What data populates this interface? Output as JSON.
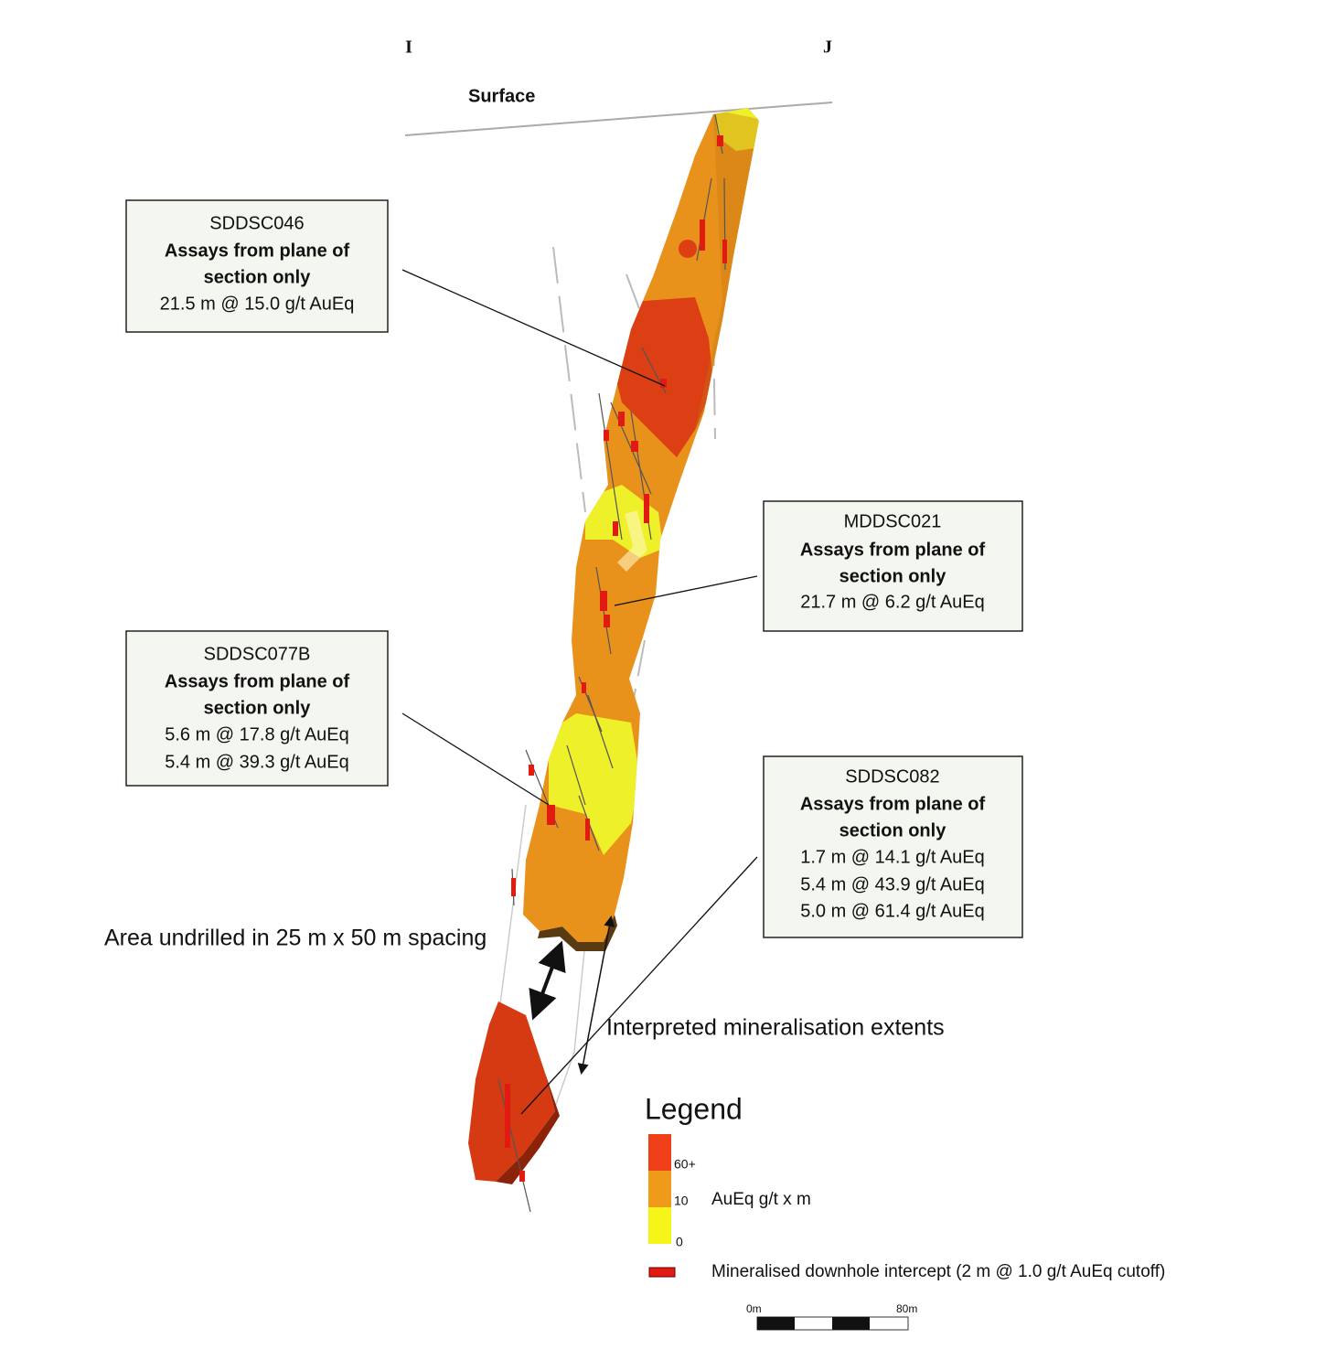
{
  "section_labels": {
    "start": "I",
    "end": "J"
  },
  "surface_label": "Surface",
  "callouts": [
    {
      "hole": "SDDSC046",
      "note_lines": [
        "Assays from plane of",
        "section only"
      ],
      "intercepts": [
        "21.5 m @ 15.0 g/t AuEq"
      ]
    },
    {
      "hole": "MDDSC021",
      "note_lines": [
        "Assays from plane of",
        "section only"
      ],
      "intercepts": [
        "21.7 m @ 6.2 g/t AuEq"
      ]
    },
    {
      "hole": "SDDSC077B",
      "note_lines": [
        "Assays from plane of",
        "section only"
      ],
      "intercepts": [
        "5.6 m @ 17.8 g/t AuEq",
        "5.4 m @ 39.3 g/t AuEq"
      ]
    },
    {
      "hole": "SDDSC082",
      "note_lines": [
        "Assays from plane of",
        "section only"
      ],
      "intercepts": [
        "1.7 m @ 14.1 g/t AuEq",
        "5.4 m @ 43.9 g/t AuEq",
        "5.0 m @ 61.4 g/t AuEq"
      ]
    }
  ],
  "annotations": [
    "Area undrilled in 25 m x 50 m spacing",
    "Interpreted mineralisation extents"
  ],
  "legend": {
    "title": "Legend",
    "ramp_labels": [
      "60+",
      "10",
      "0"
    ],
    "ramp_caption": "AuEq g/t x m",
    "intercept_label": "Mineralised downhole intercept (2 m @ 1.0 g/t AuEq cutoff)"
  },
  "scale_bar": {
    "start": "0m",
    "end": "80m"
  }
}
